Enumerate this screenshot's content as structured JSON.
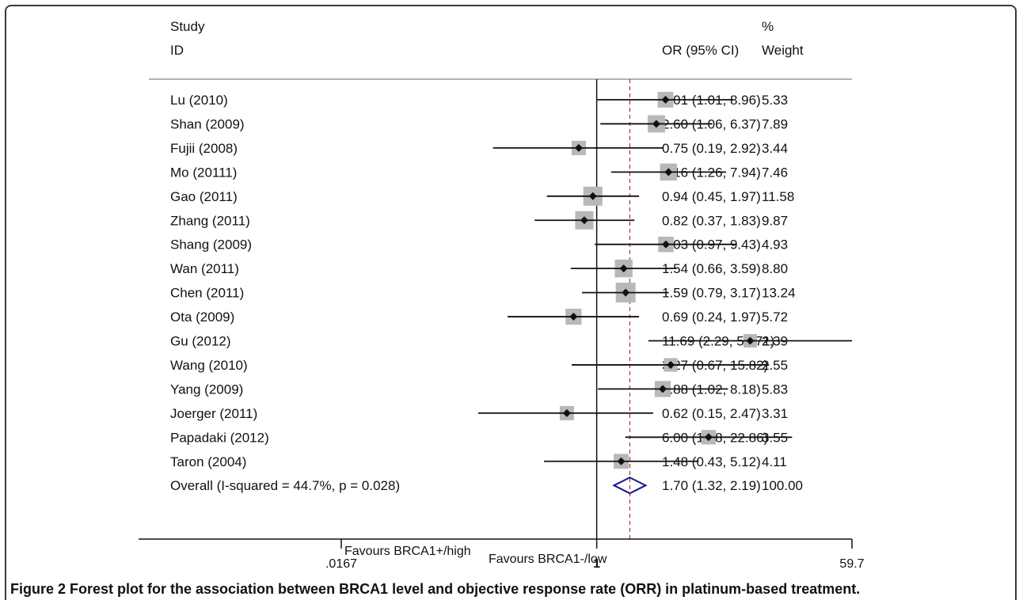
{
  "header": {
    "study_line1": "Study",
    "study_line2": "ID",
    "ci_header": "OR (95% CI)",
    "weight_line1": "%",
    "weight_line2": "Weight"
  },
  "caption": {
    "figure_number": "Figure 2",
    "text": " Forest plot for the association between BRCA1 level and objective response rate (ORR) in platinum-based treatment."
  },
  "axis": {
    "ticks": [
      {
        "value": 0.0167,
        "label": ".0167"
      },
      {
        "value": 1,
        "label": "1"
      },
      {
        "value": 59.7,
        "label": "59.7"
      }
    ],
    "favours_left": "Favours BRCA1+/high",
    "favours_right": "Favours BRCA1-/low"
  },
  "colors": {
    "line": "#111111",
    "marker_box": "#b8b8b8",
    "diamond": "#1a1a8c",
    "overall_dashed": "#b03030"
  },
  "chart_data": {
    "type": "forest",
    "scale": "log",
    "null_value": 1,
    "xlim": [
      0.0167,
      59.7
    ],
    "studies": [
      {
        "label": "Lu (2010)",
        "or": 3.01,
        "lo": 1.01,
        "hi": 8.96,
        "ci_text": "3.01 (1.01, 8.96)",
        "weight": 5.33,
        "weight_text": "5.33"
      },
      {
        "label": "Shan (2009)",
        "or": 2.6,
        "lo": 1.06,
        "hi": 6.37,
        "ci_text": "2.60 (1.06, 6.37)",
        "weight": 7.89,
        "weight_text": "7.89"
      },
      {
        "label": "Fujii (2008)",
        "or": 0.75,
        "lo": 0.19,
        "hi": 2.92,
        "ci_text": "0.75 (0.19, 2.92)",
        "weight": 3.44,
        "weight_text": "3.44"
      },
      {
        "label": "Mo (20111)",
        "or": 3.16,
        "lo": 1.26,
        "hi": 7.94,
        "ci_text": "3.16 (1.26, 7.94)",
        "weight": 7.46,
        "weight_text": "7.46"
      },
      {
        "label": "Gao (2011)",
        "or": 0.94,
        "lo": 0.45,
        "hi": 1.97,
        "ci_text": "0.94 (0.45, 1.97)",
        "weight": 11.58,
        "weight_text": "11.58"
      },
      {
        "label": "Zhang (2011)",
        "or": 0.82,
        "lo": 0.37,
        "hi": 1.83,
        "ci_text": "0.82 (0.37, 1.83)",
        "weight": 9.87,
        "weight_text": "9.87"
      },
      {
        "label": "Shang (2009)",
        "or": 3.03,
        "lo": 0.97,
        "hi": 9.43,
        "ci_text": "3.03 (0.97, 9.43)",
        "weight": 4.93,
        "weight_text": "4.93"
      },
      {
        "label": "Wan (2011)",
        "or": 1.54,
        "lo": 0.66,
        "hi": 3.59,
        "ci_text": "1.54 (0.66, 3.59)",
        "weight": 8.8,
        "weight_text": "8.80"
      },
      {
        "label": "Chen (2011)",
        "or": 1.59,
        "lo": 0.79,
        "hi": 3.17,
        "ci_text": "1.59 (0.79, 3.17)",
        "weight": 13.24,
        "weight_text": "13.24"
      },
      {
        "label": "Ota (2009)",
        "or": 0.69,
        "lo": 0.24,
        "hi": 1.97,
        "ci_text": "0.69 (0.24, 1.97)",
        "weight": 5.72,
        "weight_text": "5.72"
      },
      {
        "label": "Gu (2012)",
        "or": 11.69,
        "lo": 2.29,
        "hi": 59.71,
        "ci_text": "11.69 (2.29, 59.71)",
        "weight": 2.39,
        "weight_text": "2.39"
      },
      {
        "label": "Wang (2010)",
        "or": 3.27,
        "lo": 0.67,
        "hi": 15.82,
        "ci_text": "3.27 (0.67, 15.82)",
        "weight": 2.55,
        "weight_text": "2.55"
      },
      {
        "label": "Yang (2009)",
        "or": 2.88,
        "lo": 1.02,
        "hi": 8.18,
        "ci_text": "2.88 (1.02, 8.18)",
        "weight": 5.83,
        "weight_text": "5.83"
      },
      {
        "label": "Joerger (2011)",
        "or": 0.62,
        "lo": 0.15,
        "hi": 2.47,
        "ci_text": "0.62 (0.15, 2.47)",
        "weight": 3.31,
        "weight_text": "3.31"
      },
      {
        "label": "Papadaki (2012)",
        "or": 6.0,
        "lo": 1.58,
        "hi": 22.86,
        "ci_text": "6.00 (1.58, 22.86)",
        "weight": 3.55,
        "weight_text": "3.55"
      },
      {
        "label": "Taron (2004)",
        "or": 1.48,
        "lo": 0.43,
        "hi": 5.12,
        "ci_text": "1.48 (0.43, 5.12)",
        "weight": 4.11,
        "weight_text": "4.11"
      }
    ],
    "overall": {
      "label": "Overall  (I-squared = 44.7%, p = 0.028)",
      "or": 1.7,
      "lo": 1.32,
      "hi": 2.19,
      "ci_text": "1.70 (1.32, 2.19)",
      "weight_text": "100.00"
    }
  }
}
